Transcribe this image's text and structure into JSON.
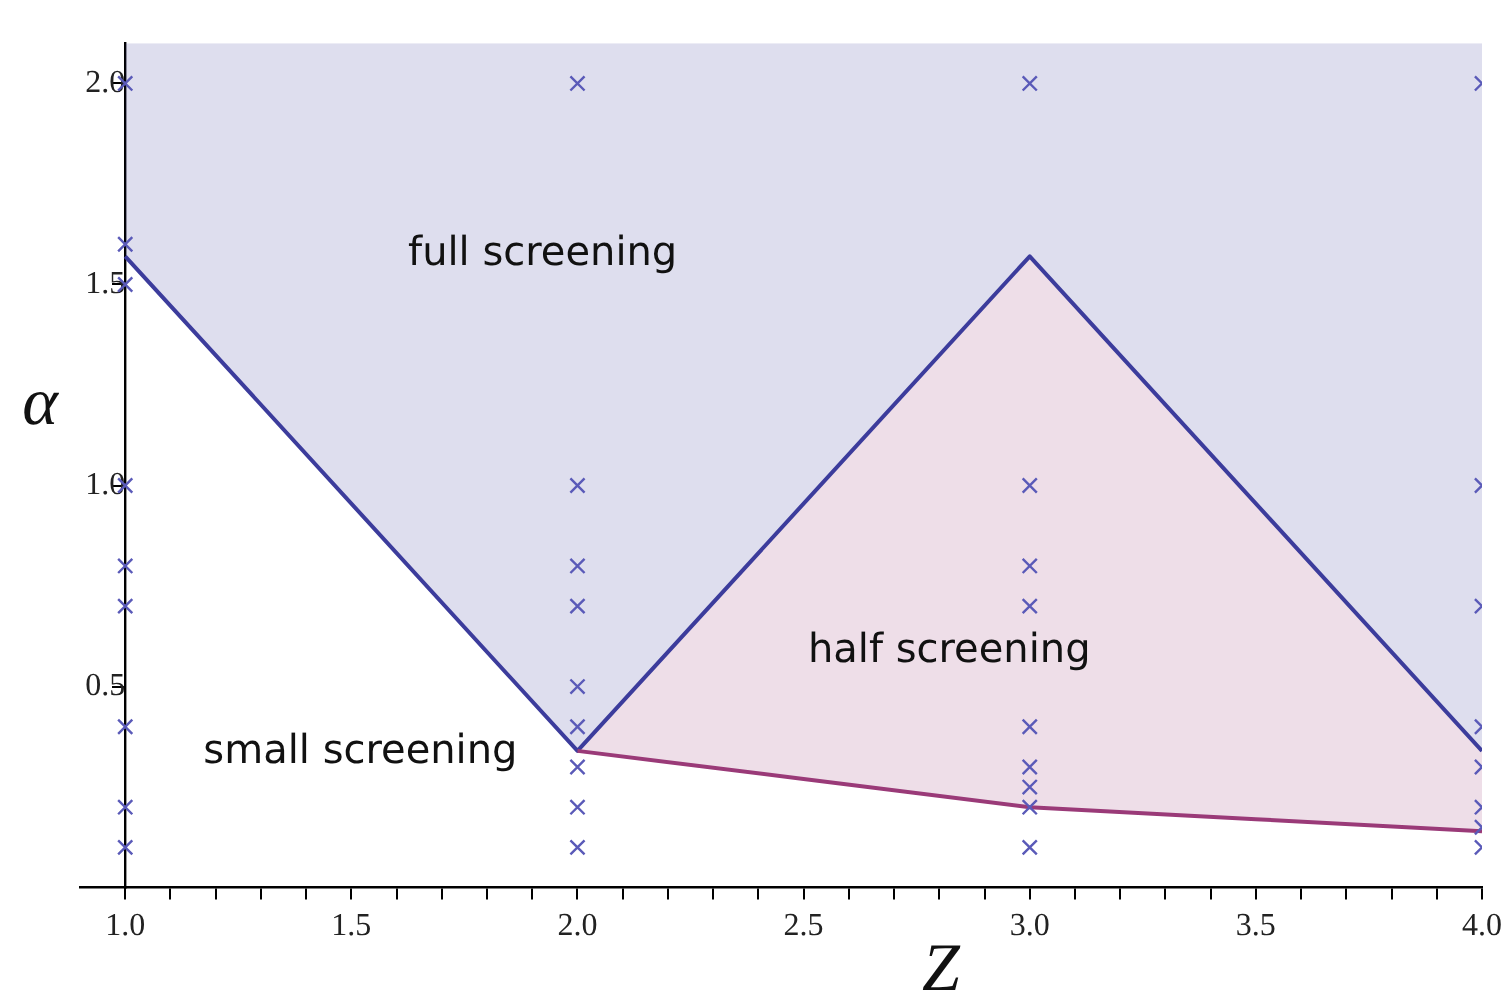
{
  "chart_data": {
    "type": "scatter",
    "xlabel": "Z",
    "ylabel": "α",
    "marker": "cross",
    "xlim": [
      0.9,
      4.0
    ],
    "ylim": [
      0,
      2.1
    ],
    "xticks": [
      {
        "value": 1,
        "label": "1.0"
      },
      {
        "value": 1.1,
        "label": null
      },
      {
        "value": 1.2,
        "label": null
      },
      {
        "value": 1.3,
        "label": null
      },
      {
        "value": 1.4,
        "label": null
      },
      1.5,
      {
        "value": 1.6,
        "label": null
      },
      {
        "value": 1.7,
        "label": null
      },
      {
        "value": 1.8,
        "label": null
      },
      {
        "value": 1.9,
        "label": null
      },
      {
        "value": 2,
        "label": "2.0"
      },
      {
        "value": 2.1,
        "label": null
      },
      {
        "value": 2.2,
        "label": null
      },
      {
        "value": 2.3,
        "label": null
      },
      {
        "value": 2.4,
        "label": null
      },
      2.5,
      {
        "value": 2.6,
        "label": null
      },
      {
        "value": 2.7,
        "label": null
      },
      {
        "value": 2.8,
        "label": null
      },
      {
        "value": 2.9,
        "label": null
      },
      {
        "value": 3,
        "label": "3.0"
      },
      {
        "value": 3.1,
        "label": null
      },
      {
        "value": 3.2,
        "label": null
      },
      {
        "value": 3.3,
        "label": null
      },
      {
        "value": 3.4,
        "label": null
      },
      3.5,
      {
        "value": 3.6,
        "label": null
      },
      {
        "value": 3.7,
        "label": null
      },
      {
        "value": 3.8,
        "label": null
      },
      {
        "value": 3.9,
        "label": null
      },
      {
        "value": 4,
        "label": "4.0"
      }
    ],
    "yticks": [
      0.5,
      {
        "value": 1,
        "label": "1.0"
      },
      1.5,
      {
        "value": 2,
        "label": "2.0"
      }
    ],
    "series": [
      {
        "type": "line",
        "marker": "none",
        "color": "#9a3a78",
        "x": [
          2,
          2.5,
          3,
          3.5,
          4
        ],
        "values": [
          0.34,
          0.27,
          0.2,
          0.17,
          0.14
        ],
        "lower": [
          0.34,
          0.27,
          0.2,
          0.17,
          0.14
        ],
        "upper": [
          0.34,
          0.955,
          1.57,
          0.955,
          0.34
        ]
      },
      {
        "type": "line",
        "marker": "none",
        "color": "#3c3c9c",
        "x": [
          1,
          2,
          3,
          4
        ],
        "values": [
          1.57,
          0.34,
          1.57,
          0.34
        ],
        "lower": [
          1.57,
          0.34,
          1.57,
          0.34
        ],
        "upper": [
          2.1,
          2.1,
          2.1,
          2.1
        ]
      },
      {
        "color": "#5a5ab8",
        "x": [
          1,
          1,
          1,
          1,
          1,
          1,
          1,
          1,
          1,
          2,
          2,
          2,
          2,
          2,
          2,
          2,
          2,
          2,
          3,
          3,
          3,
          3,
          3,
          3,
          3,
          3,
          3,
          4,
          4,
          4,
          4,
          4,
          4,
          4,
          4
        ],
        "values": [
          2.0,
          1.6,
          1.5,
          1.0,
          0.8,
          0.7,
          0.4,
          0.2,
          0.1,
          2.0,
          1.0,
          0.8,
          0.7,
          0.5,
          0.4,
          0.3,
          0.2,
          0.1,
          2.0,
          1.0,
          0.8,
          0.7,
          0.4,
          0.3,
          0.25,
          0.2,
          0.1,
          2.0,
          1.0,
          0.7,
          0.4,
          0.3,
          0.2,
          0.15,
          0.1
        ]
      }
    ],
    "annotations": [
      "full screening",
      "half screening",
      "small screening"
    ]
  }
}
